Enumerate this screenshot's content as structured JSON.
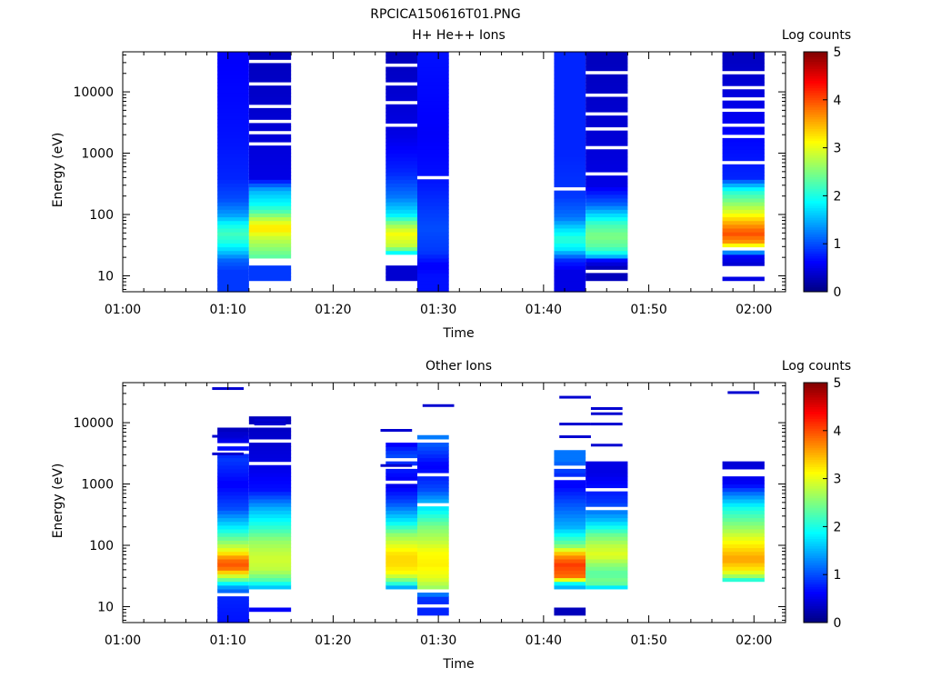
{
  "figure_title": "RPCICA150616T01.PNG",
  "colors": {
    "background": "#ffffff",
    "axis": "#000000",
    "colormap": [
      "#00007f",
      "#0000ff",
      "#007fff",
      "#00ffff",
      "#7fff7f",
      "#ffff00",
      "#ff7f00",
      "#ff0000",
      "#7f0000"
    ]
  },
  "chart_data": [
    {
      "type": "heatmap",
      "title": "H+ He++ Ions",
      "xlabel": "Time",
      "ylabel": "Energy (eV)",
      "x_tick_labels": [
        "01:00",
        "01:10",
        "01:20",
        "01:30",
        "01:40",
        "01:50",
        "02:00"
      ],
      "x_ticks_minutes": [
        0,
        10,
        20,
        30,
        40,
        50,
        60
      ],
      "xlim_minutes": [
        0,
        63
      ],
      "y_scale": "log",
      "ylim": [
        5.5,
        45000
      ],
      "y_ticks": [
        10,
        100,
        1000,
        10000
      ],
      "y_tick_labels": [
        "10",
        "100",
        "1000",
        "10000"
      ],
      "colorbar": {
        "label": "Log counts",
        "range": [
          0,
          5
        ],
        "tick_labels": [
          "0",
          "1",
          "2",
          "3",
          "4",
          "5"
        ]
      },
      "columns": [
        {
          "t_start": "01:09",
          "t_end": "01:12",
          "energy_value_profile": [
            [
              5.5,
              0.9
            ],
            [
              9,
              0.9
            ],
            [
              12,
              0.9
            ],
            [
              18,
              1.1
            ],
            [
              25,
              1.6
            ],
            [
              35,
              2.0
            ],
            [
              50,
              2.2
            ],
            [
              70,
              1.9
            ],
            [
              100,
              1.4
            ],
            [
              180,
              1.0
            ],
            [
              400,
              0.8
            ],
            [
              2000,
              0.7
            ],
            [
              45000,
              0.6
            ]
          ],
          "gap_energies": []
        },
        {
          "t_start": "01:12",
          "t_end": "01:16",
          "energy_value_profile": [
            [
              8,
              0.9
            ],
            [
              11,
              0.9
            ],
            [
              14,
              0.9
            ],
            [
              16,
              null
            ],
            [
              20,
              2.3
            ],
            [
              30,
              2.6
            ],
            [
              45,
              2.9
            ],
            [
              60,
              3.3
            ],
            [
              80,
              2.9
            ],
            [
              110,
              2.3
            ],
            [
              150,
              1.9
            ],
            [
              250,
              1.5
            ],
            [
              400,
              0.5
            ],
            [
              45000,
              0.3
            ]
          ],
          "gap_energies": [
            16,
            18,
            1500,
            2200,
            3500,
            6000,
            13000,
            30000
          ]
        },
        {
          "t_start": "01:25",
          "t_end": "01:28",
          "energy_value_profile": [
            [
              8,
              0.4
            ],
            [
              14,
              0.4
            ],
            [
              16,
              null
            ],
            [
              22,
              1.5
            ],
            [
              30,
              2.8
            ],
            [
              50,
              3.1
            ],
            [
              70,
              2.6
            ],
            [
              100,
              1.8
            ],
            [
              200,
              1.2
            ],
            [
              500,
              0.8
            ],
            [
              2000,
              0.5
            ],
            [
              45000,
              0.3
            ]
          ],
          "gap_energies": [
            16,
            18,
            3000,
            7000,
            14000,
            28000
          ]
        },
        {
          "t_start": "01:28",
          "t_end": "01:31",
          "energy_value_profile": [
            [
              5.5,
              0.7
            ],
            [
              10,
              0.7
            ],
            [
              15,
              0.6
            ],
            [
              25,
              0.9
            ],
            [
              60,
              1.0
            ],
            [
              120,
              0.9
            ],
            [
              400,
              0.7
            ],
            [
              2000,
              0.6
            ],
            [
              45000,
              0.7
            ]
          ],
          "gap_energies": [
            420
          ]
        },
        {
          "t_start": "01:41",
          "t_end": "01:44",
          "energy_value_profile": [
            [
              5.5,
              0.5
            ],
            [
              12,
              0.5
            ],
            [
              18,
              0.8
            ],
            [
              28,
              1.8
            ],
            [
              40,
              2.1
            ],
            [
              60,
              1.7
            ],
            [
              90,
              1.2
            ],
            [
              200,
              0.9
            ],
            [
              1000,
              0.8
            ],
            [
              45000,
              0.8
            ]
          ],
          "gap_energies": [
            280
          ]
        },
        {
          "t_start": "01:44",
          "t_end": "01:48",
          "energy_value_profile": [
            [
              8,
              0.3
            ],
            [
              11,
              0.3
            ],
            [
              14,
              0.3
            ],
            [
              18,
              0.6
            ],
            [
              22,
              1.8
            ],
            [
              30,
              2.3
            ],
            [
              45,
              2.5
            ],
            [
              70,
              2.2
            ],
            [
              100,
              1.7
            ],
            [
              150,
              1.1
            ],
            [
              300,
              0.5
            ],
            [
              45000,
              0.3
            ]
          ],
          "gap_energies": [
            12,
            450,
            1200,
            2500,
            4500,
            9000,
            20000
          ]
        },
        {
          "t_start": "01:57",
          "t_end": "02:01",
          "energy_value_profile": [
            [
              8,
              0.5
            ],
            [
              10,
              0.5
            ],
            [
              12,
              null
            ],
            [
              15,
              0.4
            ],
            [
              22,
              0.6
            ],
            [
              28,
              2.4
            ],
            [
              35,
              3.6
            ],
            [
              50,
              4.0
            ],
            [
              70,
              3.6
            ],
            [
              100,
              3.1
            ],
            [
              150,
              2.6
            ],
            [
              250,
              2.0
            ],
            [
              400,
              0.8
            ],
            [
              45000,
              0.3
            ]
          ],
          "gap_energies": [
            11,
            12,
            26,
            700,
            1800,
            2800,
            5000,
            8000,
            12000,
            20000
          ]
        }
      ]
    },
    {
      "type": "heatmap",
      "title": "Other Ions",
      "xlabel": "Time",
      "ylabel": "Energy (eV)",
      "x_tick_labels": [
        "01:00",
        "01:10",
        "01:20",
        "01:30",
        "01:40",
        "01:50",
        "02:00"
      ],
      "x_ticks_minutes": [
        0,
        10,
        20,
        30,
        40,
        50,
        60
      ],
      "xlim_minutes": [
        0,
        63
      ],
      "y_scale": "log",
      "ylim": [
        5.5,
        45000
      ],
      "y_ticks": [
        10,
        100,
        1000,
        10000
      ],
      "y_tick_labels": [
        "10",
        "100",
        "1000",
        "10000"
      ],
      "colorbar": {
        "label": "Log counts",
        "range": [
          0,
          5
        ],
        "tick_labels": [
          "0",
          "1",
          "2",
          "3",
          "4",
          "5"
        ]
      },
      "columns": [
        {
          "t_start": "01:09",
          "t_end": "01:12",
          "energy_value_profile": [
            [
              5.5,
              0.7
            ],
            [
              15,
              0.8
            ],
            [
              22,
              1.5
            ],
            [
              30,
              2.7
            ],
            [
              45,
              4.0
            ],
            [
              60,
              3.8
            ],
            [
              80,
              3.1
            ],
            [
              120,
              2.5
            ],
            [
              200,
              1.8
            ],
            [
              400,
              1.0
            ],
            [
              1000,
              0.6
            ],
            [
              2500,
              0.9
            ],
            [
              8000,
              0.3
            ]
          ],
          "gap_energies": [
            16,
            3200,
            4500
          ],
          "top_energy": 8500
        },
        {
          "t_start": "01:12",
          "t_end": "01:16",
          "energy_value_profile": [
            [
              8,
              0.6
            ],
            [
              10,
              0.6
            ],
            [
              12,
              null
            ],
            [
              20,
              1.5
            ],
            [
              28,
              2.3
            ],
            [
              40,
              2.8
            ],
            [
              60,
              2.9
            ],
            [
              80,
              2.8
            ],
            [
              120,
              2.6
            ],
            [
              200,
              2.1
            ],
            [
              400,
              1.5
            ],
            [
              800,
              0.7
            ],
            [
              2000,
              0.5
            ],
            [
              12000,
              0.3
            ]
          ],
          "gap_energies": [
            2200,
            5000,
            9000
          ],
          "top_energy": 12000
        },
        {
          "t_start": "01:25",
          "t_end": "01:28",
          "energy_value_profile": [
            [
              20,
              1.3
            ],
            [
              25,
              2.2
            ],
            [
              35,
              3.1
            ],
            [
              50,
              3.3
            ],
            [
              70,
              3.3
            ],
            [
              100,
              3.0
            ],
            [
              150,
              2.6
            ],
            [
              250,
              1.8
            ],
            [
              500,
              1.0
            ],
            [
              1000,
              0.5
            ],
            [
              3000,
              1.0
            ],
            [
              5000,
              0.5
            ]
          ],
          "gap_energies": [
            1100,
            1800,
            2500
          ],
          "top_energy": 5000
        },
        {
          "t_start": "01:28",
          "t_end": "01:31",
          "energy_value_profile": [
            [
              7,
              0.8
            ],
            [
              10,
              0.8
            ],
            [
              15,
              0.9
            ],
            [
              20,
              2.6
            ],
            [
              30,
              3.0
            ],
            [
              50,
              3.2
            ],
            [
              80,
              3.1
            ],
            [
              120,
              2.8
            ],
            [
              200,
              2.5
            ],
            [
              400,
              1.8
            ],
            [
              800,
              1.0
            ],
            [
              2000,
              0.6
            ],
            [
              6500,
              1.3
            ]
          ],
          "gap_energies": [
            11,
            17,
            450,
            1500,
            5000
          ],
          "top_energy": 6500
        },
        {
          "t_start": "01:41",
          "t_end": "01:44",
          "energy_value_profile": [
            [
              7,
              0.3
            ],
            [
              10,
              0.3
            ],
            [
              12,
              null
            ],
            [
              20,
              1.4
            ],
            [
              25,
              2.0
            ],
            [
              30,
              3.8
            ],
            [
              50,
              4.1
            ],
            [
              70,
              3.6
            ],
            [
              100,
              2.5
            ],
            [
              200,
              1.5
            ],
            [
              500,
              1.0
            ],
            [
              1000,
              0.6
            ],
            [
              2500,
              1.2
            ],
            [
              3500,
              1.2
            ]
          ],
          "gap_energies": [
            1300,
            1800
          ],
          "top_energy": 3500
        },
        {
          "t_start": "01:44",
          "t_end": "01:48",
          "energy_value_profile": [
            [
              20,
              1.6
            ],
            [
              25,
              2.5
            ],
            [
              35,
              2.3
            ],
            [
              50,
              2.6
            ],
            [
              70,
              3.0
            ],
            [
              100,
              2.8
            ],
            [
              150,
              2.4
            ],
            [
              250,
              1.6
            ],
            [
              500,
              0.9
            ],
            [
              1500,
              0.5
            ],
            [
              2500,
              0.5
            ]
          ],
          "gap_energies": [
            400,
            850
          ],
          "top_energy": 2500
        },
        {
          "t_start": "01:57",
          "t_end": "02:01",
          "energy_value_profile": [
            [
              25,
              1.5
            ],
            [
              30,
              2.5
            ],
            [
              40,
              3.2
            ],
            [
              60,
              3.6
            ],
            [
              90,
              3.3
            ],
            [
              130,
              3.0
            ],
            [
              200,
              2.6
            ],
            [
              400,
              2.0
            ],
            [
              700,
              1.2
            ],
            [
              1000,
              0.6
            ],
            [
              2500,
              0.4
            ]
          ],
          "gap_energies": [
            1400,
            1700
          ],
          "top_energy": 2500
        }
      ],
      "isolated_lines": [
        {
          "time": "01:10",
          "energy": 36000
        },
        {
          "time": "01:10",
          "energy": 6000
        },
        {
          "time": "01:10",
          "energy": 3100
        },
        {
          "time": "01:14",
          "energy": 11000
        },
        {
          "time": "01:14",
          "energy": 9500
        },
        {
          "time": "01:14",
          "energy": 4300
        },
        {
          "time": "01:26",
          "energy": 7500
        },
        {
          "time": "01:26",
          "energy": 2000
        },
        {
          "time": "01:30",
          "energy": 19000
        },
        {
          "time": "01:43",
          "energy": 26000
        },
        {
          "time": "01:43",
          "energy": 9500
        },
        {
          "time": "01:43",
          "energy": 5900
        },
        {
          "time": "01:46",
          "energy": 17000
        },
        {
          "time": "01:46",
          "energy": 14000
        },
        {
          "time": "01:46",
          "energy": 9500
        },
        {
          "time": "01:46",
          "energy": 4300
        },
        {
          "time": "01:59",
          "energy": 31000
        }
      ]
    }
  ]
}
